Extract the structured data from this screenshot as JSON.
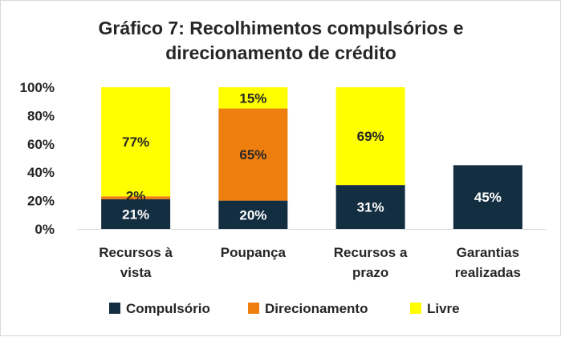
{
  "chart_data": {
    "type": "bar",
    "stacked": true,
    "title_lines": [
      "Gráfico 7: Recolhimentos compulsórios e",
      "direcionamento de crédito"
    ],
    "categories": [
      [
        "Recursos à",
        "vista"
      ],
      [
        "Poupança"
      ],
      [
        "Recursos a",
        "prazo"
      ],
      [
        "Garantias",
        "realizadas"
      ]
    ],
    "y_ticks": [
      "0%",
      "20%",
      "40%",
      "60%",
      "80%",
      "100%"
    ],
    "ylim": [
      0,
      100
    ],
    "series": [
      {
        "name": "Compulsório",
        "color": "#132D41",
        "label_color": "#ffffff",
        "values": [
          21,
          20,
          31,
          45
        ],
        "labels": [
          "21%",
          "20%",
          "31%",
          "45%"
        ]
      },
      {
        "name": "Direcionamento",
        "color": "#EE7E0E",
        "label_color": "#262626",
        "values": [
          2,
          65,
          0,
          0
        ],
        "labels": [
          "2%",
          "65%",
          "",
          ""
        ]
      },
      {
        "name": "Livre",
        "color": "#FFFF00",
        "label_color": "#262626",
        "values": [
          77,
          15,
          69,
          0
        ],
        "labels": [
          "77%",
          "15%",
          "69%",
          ""
        ]
      }
    ],
    "legend_position": "bottom",
    "grid": false
  }
}
